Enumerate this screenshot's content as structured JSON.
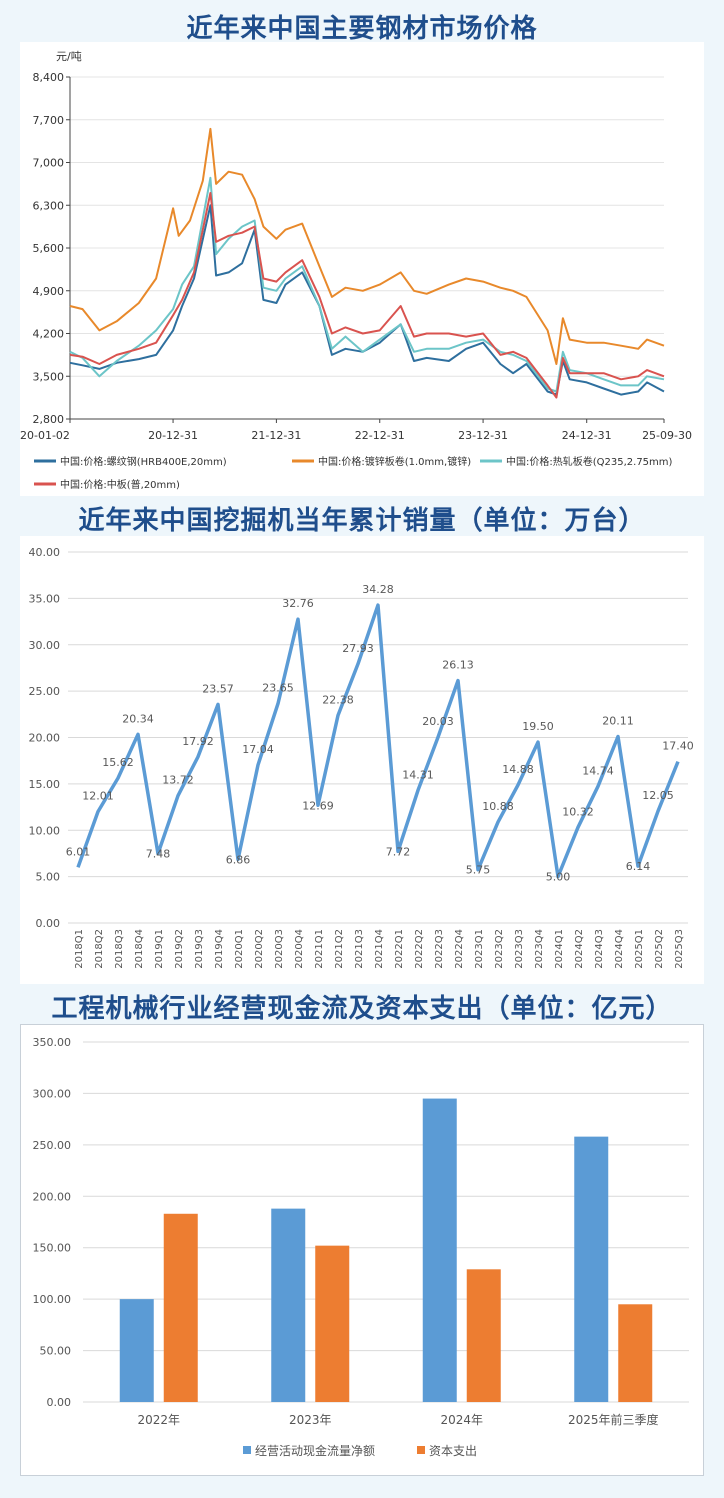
{
  "colors": {
    "title": "#1f4e8c",
    "rebar": "#2e6f9e",
    "galv": "#e8892b",
    "hotroll": "#6cc5c8",
    "plate": "#d9534f",
    "excavator_line": "#5b9bd5",
    "opcash": "#5b9bd5",
    "capex": "#ed7d31"
  },
  "chart_data": [
    {
      "type": "line",
      "title": "近年来中国主要钢材市场价格",
      "ylabel": "元/吨",
      "ylim": [
        2800,
        8400
      ],
      "yticks": [
        "8,400",
        "7,700",
        "7,000",
        "6,300",
        "5,600",
        "4,900",
        "4,200",
        "3,500",
        "2,800"
      ],
      "xticks": [
        "20-01-02",
        "20-12-31",
        "21-12-31",
        "22-12-31",
        "23-12-31",
        "24-12-31",
        "25-09-30"
      ],
      "series": [
        {
          "name": "中国:价格:螺纹钢(HRB400E,20mm)",
          "color_key": "rebar",
          "points": [
            [
              "2020-01-02",
              3720
            ],
            [
              "2020-02-15",
              3680
            ],
            [
              "2020-04-15",
              3620
            ],
            [
              "2020-06-15",
              3720
            ],
            [
              "2020-09-01",
              3780
            ],
            [
              "2020-11-01",
              3850
            ],
            [
              "2020-12-31",
              4250
            ],
            [
              "2021-02-01",
              4650
            ],
            [
              "2021-03-15",
              5100
            ],
            [
              "2021-05-12",
              6300
            ],
            [
              "2021-06-01",
              5150
            ],
            [
              "2021-07-15",
              5200
            ],
            [
              "2021-09-01",
              5350
            ],
            [
              "2021-10-15",
              5900
            ],
            [
              "2021-11-15",
              4750
            ],
            [
              "2021-12-31",
              4700
            ],
            [
              "2022-02-01",
              5000
            ],
            [
              "2022-04-01",
              5200
            ],
            [
              "2022-06-01",
              4650
            ],
            [
              "2022-07-15",
              3850
            ],
            [
              "2022-09-01",
              3950
            ],
            [
              "2022-11-01",
              3900
            ],
            [
              "2022-12-31",
              4050
            ],
            [
              "2023-03-15",
              4350
            ],
            [
              "2023-05-01",
              3750
            ],
            [
              "2023-06-15",
              3800
            ],
            [
              "2023-09-01",
              3750
            ],
            [
              "2023-11-01",
              3950
            ],
            [
              "2023-12-31",
              4050
            ],
            [
              "2024-03-01",
              3700
            ],
            [
              "2024-04-15",
              3550
            ],
            [
              "2024-06-01",
              3700
            ],
            [
              "2024-08-15",
              3250
            ],
            [
              "2024-09-15",
              3200
            ],
            [
              "2024-10-08",
              3750
            ],
            [
              "2024-11-01",
              3450
            ],
            [
              "2024-12-31",
              3400
            ],
            [
              "2025-03-01",
              3300
            ],
            [
              "2025-05-01",
              3200
            ],
            [
              "2025-07-01",
              3250
            ],
            [
              "2025-08-01",
              3400
            ],
            [
              "2025-09-30",
              3250
            ]
          ]
        },
        {
          "name": "中国:价格:镀锌板卷(1.0mm,镀锌)",
          "color_key": "galv",
          "points": [
            [
              "2020-01-02",
              4650
            ],
            [
              "2020-02-15",
              4600
            ],
            [
              "2020-04-15",
              4250
            ],
            [
              "2020-06-15",
              4400
            ],
            [
              "2020-09-01",
              4700
            ],
            [
              "2020-11-01",
              5100
            ],
            [
              "2020-12-31",
              6250
            ],
            [
              "2021-01-20",
              5800
            ],
            [
              "2021-03-01",
              6050
            ],
            [
              "2021-04-15",
              6700
            ],
            [
              "2021-05-12",
              7550
            ],
            [
              "2021-06-01",
              6650
            ],
            [
              "2021-07-15",
              6850
            ],
            [
              "2021-09-01",
              6800
            ],
            [
              "2021-10-15",
              6400
            ],
            [
              "2021-11-15",
              5950
            ],
            [
              "2021-12-31",
              5750
            ],
            [
              "2022-02-01",
              5900
            ],
            [
              "2022-04-01",
              6000
            ],
            [
              "2022-06-01",
              5300
            ],
            [
              "2022-07-15",
              4800
            ],
            [
              "2022-09-01",
              4950
            ],
            [
              "2022-11-01",
              4900
            ],
            [
              "2022-12-31",
              5000
            ],
            [
              "2023-03-15",
              5200
            ],
            [
              "2023-05-01",
              4900
            ],
            [
              "2023-06-15",
              4850
            ],
            [
              "2023-09-01",
              5000
            ],
            [
              "2023-11-01",
              5100
            ],
            [
              "2023-12-31",
              5050
            ],
            [
              "2024-03-01",
              4950
            ],
            [
              "2024-04-15",
              4900
            ],
            [
              "2024-06-01",
              4800
            ],
            [
              "2024-08-15",
              4250
            ],
            [
              "2024-09-15",
              3700
            ],
            [
              "2024-10-08",
              4450
            ],
            [
              "2024-11-01",
              4100
            ],
            [
              "2024-12-31",
              4050
            ],
            [
              "2025-03-01",
              4050
            ],
            [
              "2025-05-01",
              4000
            ],
            [
              "2025-07-01",
              3950
            ],
            [
              "2025-08-01",
              4100
            ],
            [
              "2025-09-30",
              4000
            ]
          ]
        },
        {
          "name": "中国:价格:热轧板卷(Q235,2.75mm)",
          "color_key": "hotroll",
          "points": [
            [
              "2020-01-02",
              3900
            ],
            [
              "2020-02-15",
              3800
            ],
            [
              "2020-04-15",
              3500
            ],
            [
              "2020-06-15",
              3750
            ],
            [
              "2020-09-01",
              4000
            ],
            [
              "2020-11-01",
              4250
            ],
            [
              "2020-12-31",
              4600
            ],
            [
              "2021-02-01",
              5000
            ],
            [
              "2021-03-15",
              5300
            ],
            [
              "2021-05-12",
              6750
            ],
            [
              "2021-06-01",
              5500
            ],
            [
              "2021-07-15",
              5750
            ],
            [
              "2021-09-01",
              5950
            ],
            [
              "2021-10-15",
              6050
            ],
            [
              "2021-11-15",
              4950
            ],
            [
              "2021-12-31",
              4900
            ],
            [
              "2022-02-01",
              5100
            ],
            [
              "2022-04-01",
              5300
            ],
            [
              "2022-06-01",
              4650
            ],
            [
              "2022-07-15",
              3950
            ],
            [
              "2022-09-01",
              4150
            ],
            [
              "2022-11-01",
              3900
            ],
            [
              "2022-12-31",
              4100
            ],
            [
              "2023-03-15",
              4350
            ],
            [
              "2023-05-01",
              3900
            ],
            [
              "2023-06-15",
              3950
            ],
            [
              "2023-09-01",
              3950
            ],
            [
              "2023-11-01",
              4050
            ],
            [
              "2023-12-31",
              4100
            ],
            [
              "2024-03-01",
              3900
            ],
            [
              "2024-04-15",
              3850
            ],
            [
              "2024-06-01",
              3750
            ],
            [
              "2024-08-15",
              3300
            ],
            [
              "2024-09-15",
              3250
            ],
            [
              "2024-10-08",
              3900
            ],
            [
              "2024-11-01",
              3600
            ],
            [
              "2024-12-31",
              3550
            ],
            [
              "2025-03-01",
              3450
            ],
            [
              "2025-05-01",
              3350
            ],
            [
              "2025-07-01",
              3350
            ],
            [
              "2025-08-01",
              3500
            ],
            [
              "2025-09-30",
              3450
            ]
          ]
        },
        {
          "name": "中国:价格:中板(普,20mm)",
          "color_key": "plate",
          "points": [
            [
              "2020-01-02",
              3850
            ],
            [
              "2020-02-15",
              3820
            ],
            [
              "2020-04-15",
              3700
            ],
            [
              "2020-06-15",
              3850
            ],
            [
              "2020-09-01",
              3950
            ],
            [
              "2020-11-01",
              4050
            ],
            [
              "2020-12-31",
              4500
            ],
            [
              "2021-02-01",
              4750
            ],
            [
              "2021-03-15",
              5200
            ],
            [
              "2021-05-12",
              6500
            ],
            [
              "2021-06-01",
              5700
            ],
            [
              "2021-07-15",
              5800
            ],
            [
              "2021-09-01",
              5850
            ],
            [
              "2021-10-15",
              5950
            ],
            [
              "2021-11-15",
              5100
            ],
            [
              "2021-12-31",
              5050
            ],
            [
              "2022-02-01",
              5200
            ],
            [
              "2022-04-01",
              5400
            ],
            [
              "2022-06-01",
              4800
            ],
            [
              "2022-07-15",
              4200
            ],
            [
              "2022-09-01",
              4300
            ],
            [
              "2022-11-01",
              4200
            ],
            [
              "2022-12-31",
              4250
            ],
            [
              "2023-03-15",
              4650
            ],
            [
              "2023-05-01",
              4150
            ],
            [
              "2023-06-15",
              4200
            ],
            [
              "2023-09-01",
              4200
            ],
            [
              "2023-11-01",
              4150
            ],
            [
              "2023-12-31",
              4200
            ],
            [
              "2024-03-01",
              3850
            ],
            [
              "2024-04-15",
              3900
            ],
            [
              "2024-06-01",
              3800
            ],
            [
              "2024-08-15",
              3350
            ],
            [
              "2024-09-15",
              3150
            ],
            [
              "2024-10-08",
              3800
            ],
            [
              "2024-11-01",
              3550
            ],
            [
              "2024-12-31",
              3550
            ],
            [
              "2025-03-01",
              3550
            ],
            [
              "2025-05-01",
              3450
            ],
            [
              "2025-07-01",
              3500
            ],
            [
              "2025-08-01",
              3600
            ],
            [
              "2025-09-30",
              3500
            ]
          ]
        }
      ]
    },
    {
      "type": "line",
      "title": "近年来中国挖掘机当年累计销量（单位：万台）",
      "ylim": [
        0,
        40
      ],
      "yticks": [
        "40.00",
        "35.00",
        "30.00",
        "25.00",
        "20.00",
        "15.00",
        "10.00",
        "5.00",
        "0.00"
      ],
      "categories": [
        "2018Q1",
        "2018Q2",
        "2018Q3",
        "2018Q4",
        "2019Q1",
        "2019Q2",
        "2019Q3",
        "2019Q4",
        "2020Q1",
        "2020Q2",
        "2020Q3",
        "2020Q4",
        "2021Q1",
        "2021Q2",
        "2021Q3",
        "2021Q4",
        "2022Q1",
        "2022Q2",
        "2022Q3",
        "2022Q4",
        "2023Q1",
        "2023Q2",
        "2023Q3",
        "2023Q4",
        "2024Q1",
        "2024Q2",
        "2024Q3",
        "2024Q4",
        "2025Q1",
        "2025Q2",
        "2025Q3"
      ],
      "values": [
        6.01,
        12.01,
        15.62,
        20.34,
        7.48,
        13.72,
        17.92,
        23.57,
        6.86,
        17.04,
        23.65,
        32.76,
        12.69,
        22.38,
        27.93,
        34.28,
        7.72,
        14.31,
        20.03,
        26.13,
        5.75,
        10.88,
        14.88,
        19.5,
        5.0,
        10.32,
        14.74,
        20.11,
        6.14,
        12.05,
        17.4
      ],
      "labels": [
        "6.01",
        "12.01",
        "15.62",
        "20.34",
        "7.48",
        "13.72",
        "17.92",
        "23.57",
        "6.86",
        "17.04",
        "23.65",
        "32.76",
        "12.69",
        "22.38",
        "27.93",
        "34.28",
        "7.72",
        "14.31",
        "20.03",
        "26.13",
        "5.75",
        "10.88",
        "14.88",
        "19.50",
        "5.00",
        "10.32",
        "14.74",
        "20.11",
        "6.14",
        "12.05",
        "17.40"
      ]
    },
    {
      "type": "bar",
      "title": "工程机械行业经营现金流及资本支出（单位：亿元）",
      "ylim": [
        0,
        350
      ],
      "yticks": [
        "350.00",
        "300.00",
        "250.00",
        "200.00",
        "150.00",
        "100.00",
        "50.00",
        "0.00"
      ],
      "categories": [
        "2022年",
        "2023年",
        "2024年",
        "2025年前三季度"
      ],
      "series": [
        {
          "name": "经营活动现金流量净额",
          "values": [
            100,
            188,
            295,
            258
          ],
          "color_key": "opcash"
        },
        {
          "name": "资本支出",
          "values": [
            183,
            152,
            129,
            95
          ],
          "color_key": "capex"
        }
      ]
    }
  ]
}
